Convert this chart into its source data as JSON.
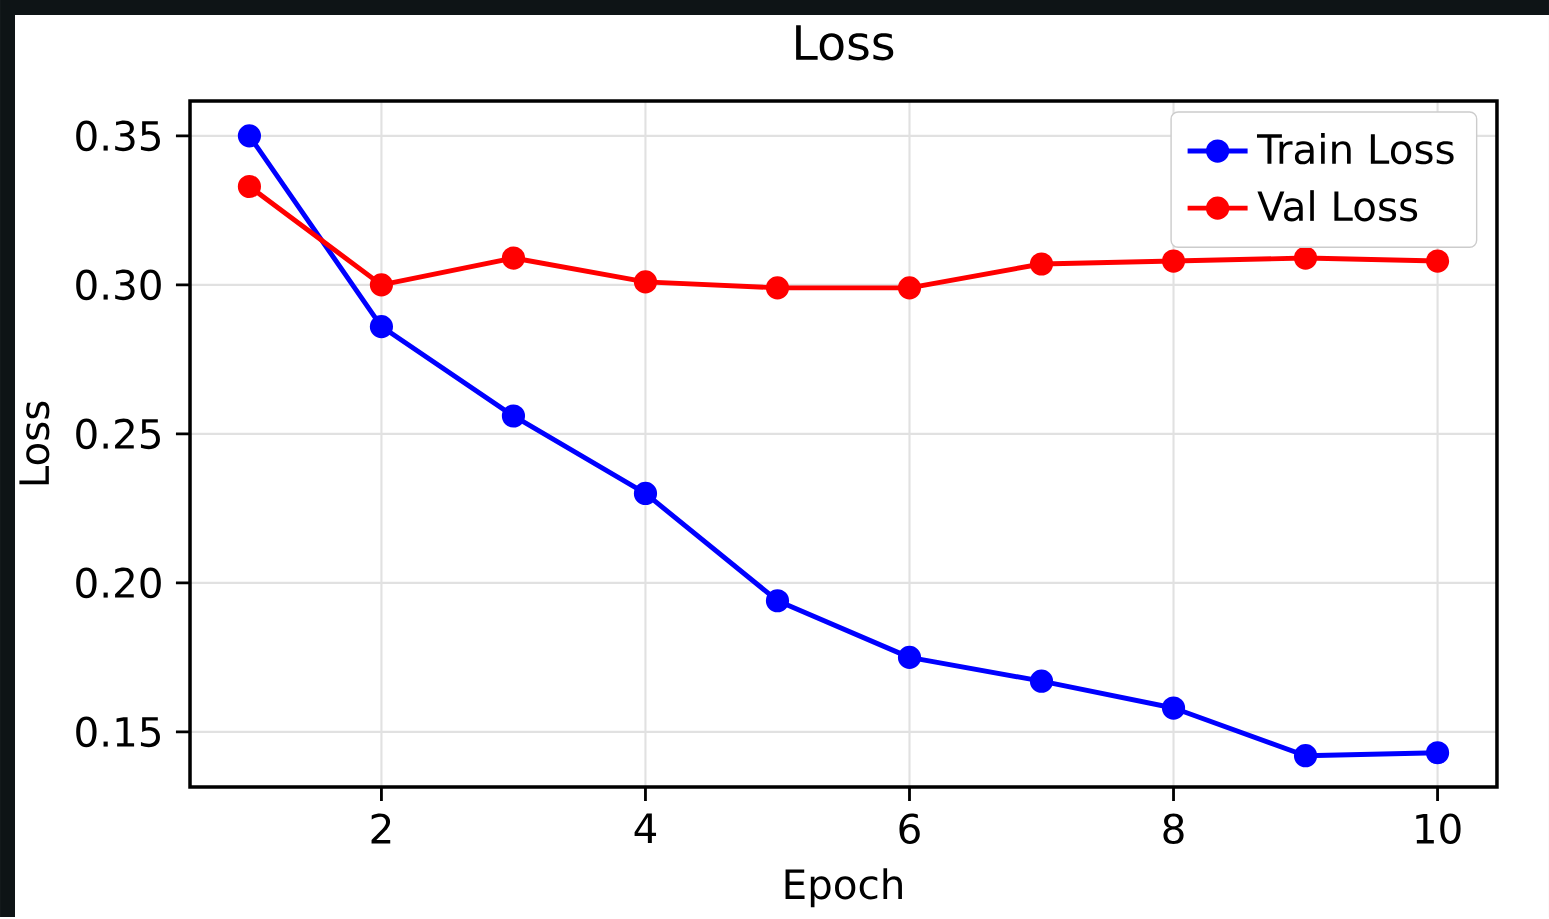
{
  "chart_data": {
    "type": "line",
    "title": "Loss",
    "xlabel": "Epoch",
    "ylabel": "Loss",
    "x": [
      1,
      2,
      3,
      4,
      5,
      6,
      7,
      8,
      9,
      10
    ],
    "series": [
      {
        "name": "Train Loss",
        "color": "#0000ff",
        "values": [
          0.35,
          0.286,
          0.256,
          0.23,
          0.194,
          0.175,
          0.167,
          0.158,
          0.142,
          0.143
        ]
      },
      {
        "name": "Val Loss",
        "color": "#ff0000",
        "values": [
          0.333,
          0.3,
          0.309,
          0.301,
          0.299,
          0.299,
          0.307,
          0.308,
          0.309,
          0.308
        ]
      }
    ],
    "xlim": [
      0.55,
      10.45
    ],
    "ylim": [
      0.1315,
      0.3617
    ],
    "xticks": [
      2,
      4,
      6,
      8,
      10
    ],
    "yticks": [
      0.15,
      {
        "value": 0.2,
        "label": "0.20"
      },
      0.25,
      {
        "value": 0.3,
        "label": "0.30"
      },
      0.35
    ],
    "grid": true,
    "legend": "top right",
    "marker": "circle",
    "line_style": "solid"
  }
}
